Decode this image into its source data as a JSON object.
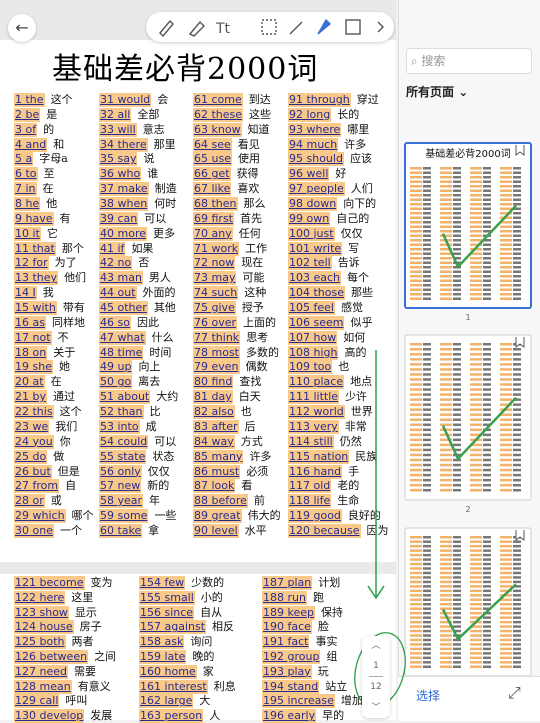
{
  "toolbar": {
    "search_placeholder": "搜索",
    "filter": "所有页面",
    "select": "选择"
  },
  "title": "基础差必背2000词",
  "page_indicator": {
    "current": "1",
    "total": "12"
  },
  "thumbnail_labels": [
    "1",
    "2"
  ],
  "page1": {
    "columns": [
      [
        [
          "1 the",
          "这个"
        ],
        [
          "2 be",
          "是"
        ],
        [
          "3 of",
          "的"
        ],
        [
          "4 and",
          "和"
        ],
        [
          "5 a",
          "字母a"
        ],
        [
          "6 to",
          "至"
        ],
        [
          "7 in",
          "在"
        ],
        [
          "8 he",
          "他"
        ],
        [
          "9 have",
          "有"
        ],
        [
          "10 it",
          "它"
        ],
        [
          "11 that",
          "那个"
        ],
        [
          "12 for",
          "为了"
        ],
        [
          "13 they",
          "他们"
        ],
        [
          "14 I",
          "我"
        ],
        [
          "15 with",
          "带有"
        ],
        [
          "16 as",
          "同样地"
        ],
        [
          "17 not",
          "不"
        ],
        [
          "18 on",
          "关于"
        ],
        [
          "19 she",
          "她"
        ],
        [
          "20 at",
          "在"
        ],
        [
          "21 by",
          "通过"
        ],
        [
          "22 this",
          "这个"
        ],
        [
          "23 we",
          "我们"
        ],
        [
          "24 you",
          "你"
        ],
        [
          "25 do",
          "做"
        ],
        [
          "26 but",
          "但是"
        ],
        [
          "27 from",
          "自"
        ],
        [
          "28 or",
          "或"
        ],
        [
          "29 which",
          "哪个"
        ],
        [
          "30 one",
          "一个"
        ]
      ],
      [
        [
          "31 would",
          "会"
        ],
        [
          "32 all",
          "全部"
        ],
        [
          "33 will",
          "意志"
        ],
        [
          "34 there",
          "那里"
        ],
        [
          "35 say",
          "说"
        ],
        [
          "36 who",
          "谁"
        ],
        [
          "37 make",
          "制造"
        ],
        [
          "38 when",
          "何时"
        ],
        [
          "39 can",
          "可以"
        ],
        [
          "40 more",
          "更多"
        ],
        [
          "41 if",
          "如果"
        ],
        [
          "42 no",
          "否"
        ],
        [
          "43 man",
          "男人"
        ],
        [
          "44 out",
          "外面的"
        ],
        [
          "45 other",
          "其他"
        ],
        [
          "46 so",
          "因此"
        ],
        [
          "47 what",
          "什么"
        ],
        [
          "48 time",
          "时间"
        ],
        [
          "49 up",
          "向上"
        ],
        [
          "50 go",
          "离去"
        ],
        [
          "51 about",
          "大约"
        ],
        [
          "52 than",
          "比"
        ],
        [
          "53 into",
          "成"
        ],
        [
          "54 could",
          "可以"
        ],
        [
          "55 state",
          "状态"
        ],
        [
          "56 only",
          "仅仅"
        ],
        [
          "57 new",
          "新的"
        ],
        [
          "58 year",
          "年"
        ],
        [
          "59 some",
          "一些"
        ],
        [
          "60 take",
          "拿"
        ]
      ],
      [
        [
          "61 come",
          "到达"
        ],
        [
          "62 these",
          "这些"
        ],
        [
          "63 know",
          "知道"
        ],
        [
          "64 see",
          "看见"
        ],
        [
          "65 use",
          "使用"
        ],
        [
          "66 get",
          "获得"
        ],
        [
          "67 like",
          "喜欢"
        ],
        [
          "68 then",
          "那么"
        ],
        [
          "69 first",
          "首先"
        ],
        [
          "70 any",
          "任何"
        ],
        [
          "71 work",
          "工作"
        ],
        [
          "72 now",
          "现在"
        ],
        [
          "73 may",
          "可能"
        ],
        [
          "74 such",
          "这种"
        ],
        [
          "75 give",
          "授予"
        ],
        [
          "76 over",
          "上面的"
        ],
        [
          "77 think",
          "思考"
        ],
        [
          "78 most",
          "多数的"
        ],
        [
          "79 even",
          "偶数"
        ],
        [
          "80 find",
          "查找"
        ],
        [
          "81 day",
          "白天"
        ],
        [
          "82 also",
          "也"
        ],
        [
          "83 after",
          "后"
        ],
        [
          "84 way",
          "方式"
        ],
        [
          "85 many",
          "许多"
        ],
        [
          "86 must",
          "必须"
        ],
        [
          "87 look",
          "看"
        ],
        [
          "88 before",
          "前"
        ],
        [
          "89 great",
          "伟大的"
        ],
        [
          "90 level",
          "水平"
        ]
      ],
      [
        [
          "91 through",
          "穿过"
        ],
        [
          "92 long",
          "长的"
        ],
        [
          "93 where",
          "哪里"
        ],
        [
          "94 much",
          "许多"
        ],
        [
          "95 should",
          "应该"
        ],
        [
          "96 well",
          "好"
        ],
        [
          "97 people",
          "人们"
        ],
        [
          "98 down",
          "向下的"
        ],
        [
          "99 own",
          "自己的"
        ],
        [
          "100 just",
          "仅仅"
        ],
        [
          "101 write",
          "写"
        ],
        [
          "102 tell",
          "告诉"
        ],
        [
          "103 each",
          "每个"
        ],
        [
          "104 those",
          "那些"
        ],
        [
          "105 feel",
          "感觉"
        ],
        [
          "106 seem",
          "似乎"
        ],
        [
          "107 how",
          "如何"
        ],
        [
          "108 high",
          "高的"
        ],
        [
          "109 too",
          "也"
        ],
        [
          "110 place",
          "地点"
        ],
        [
          "111 little",
          "少许"
        ],
        [
          "112 world",
          "世界"
        ],
        [
          "113 very",
          "非常"
        ],
        [
          "114 still",
          "仍然"
        ],
        [
          "115 nation",
          "民族"
        ],
        [
          "116 hand",
          "手"
        ],
        [
          "117 old",
          "老的"
        ],
        [
          "118 life",
          "生命"
        ],
        [
          "119 good",
          "良好的"
        ],
        [
          "120 because",
          "因为"
        ]
      ]
    ]
  },
  "page2": {
    "columns": [
      [
        [
          "121 become",
          "变为"
        ],
        [
          "122 here",
          "这里"
        ],
        [
          "123 show",
          "显示"
        ],
        [
          "124 house",
          "房子"
        ],
        [
          "125 both",
          "两者"
        ],
        [
          "126 between",
          "之间"
        ],
        [
          "127 need",
          "需要"
        ],
        [
          "128 mean",
          "有意义"
        ],
        [
          "129 call",
          "呼叫"
        ],
        [
          "130 develop",
          "发展"
        ]
      ],
      [
        [
          "154 few",
          "少数的"
        ],
        [
          "155 small",
          "小的"
        ],
        [
          "156 since",
          "自从"
        ],
        [
          "157 against",
          "相反"
        ],
        [
          "158 ask",
          "询问"
        ],
        [
          "159 late",
          "晚的"
        ],
        [
          "160 home",
          "家"
        ],
        [
          "161 interest",
          "利息"
        ],
        [
          "162 large",
          "大"
        ],
        [
          "163 person",
          "人"
        ]
      ],
      [
        [
          "187 plan",
          "计划"
        ],
        [
          "188 run",
          "跑"
        ],
        [
          "189 keep",
          "保持"
        ],
        [
          "190 face",
          "脸"
        ],
        [
          "191 fact",
          "事实"
        ],
        [
          "192 group",
          "组"
        ],
        [
          "193 play",
          "玩"
        ],
        [
          "194 stand",
          "站立"
        ],
        [
          "195 increase",
          "增加"
        ],
        [
          "196 early",
          "早的"
        ]
      ]
    ]
  }
}
